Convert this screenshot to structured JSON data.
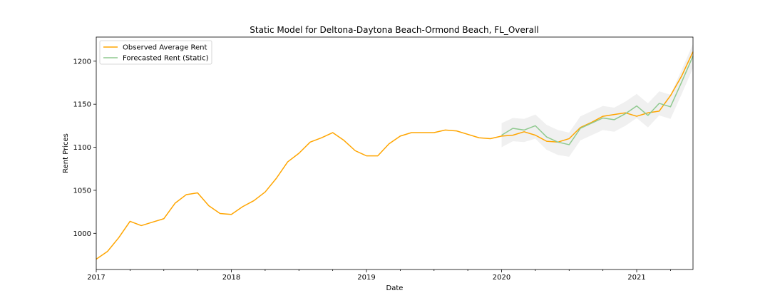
{
  "chart_data": {
    "type": "line",
    "title": "Static Model for Deltona-Daytona Beach-Ormond Beach, FL_Overall",
    "xlabel": "Date",
    "ylabel": "Rent Prices",
    "xlim": [
      "2017-01",
      "2021-06"
    ],
    "ylim": [
      958,
      1228
    ],
    "x_ticks": [
      "2017",
      "2018",
      "2019",
      "2020",
      "2021"
    ],
    "y_ticks": [
      1000,
      1050,
      1100,
      1150,
      1200
    ],
    "grid": false,
    "legend": "top-left",
    "colors": {
      "observed": "#ffa500",
      "forecast": "#8fc98f",
      "band": "#d3d3d3"
    },
    "series": [
      {
        "name": "Observed Average Rent",
        "x": [
          "2017-01",
          "2017-02",
          "2017-03",
          "2017-04",
          "2017-05",
          "2017-06",
          "2017-07",
          "2017-08",
          "2017-09",
          "2017-10",
          "2017-11",
          "2017-12",
          "2018-01",
          "2018-02",
          "2018-03",
          "2018-04",
          "2018-05",
          "2018-06",
          "2018-07",
          "2018-08",
          "2018-09",
          "2018-10",
          "2018-11",
          "2018-12",
          "2019-01",
          "2019-02",
          "2019-03",
          "2019-04",
          "2019-05",
          "2019-06",
          "2019-07",
          "2019-08",
          "2019-09",
          "2019-10",
          "2019-11",
          "2019-12",
          "2020-01",
          "2020-02",
          "2020-03",
          "2020-04",
          "2020-05",
          "2020-06",
          "2020-07",
          "2020-08",
          "2020-09",
          "2020-10",
          "2020-11",
          "2020-12",
          "2021-01",
          "2021-02",
          "2021-03",
          "2021-04",
          "2021-05",
          "2021-06"
        ],
        "values": [
          970,
          979,
          995,
          1014,
          1009,
          1013,
          1017,
          1035,
          1045,
          1047,
          1032,
          1023,
          1022,
          1031,
          1038,
          1048,
          1064,
          1083,
          1093,
          1106,
          1111,
          1117,
          1108,
          1096,
          1090,
          1090,
          1104,
          1113,
          1117,
          1117,
          1117,
          1120,
          1119,
          1115,
          1111,
          1110,
          1113,
          1114,
          1118,
          1114,
          1107,
          1106,
          1110,
          1123,
          1129,
          1136,
          1138,
          1140,
          1136,
          1140,
          1142,
          1160,
          1183,
          1211
        ]
      },
      {
        "name": "Forecasted Rent (Static)",
        "x": [
          "2020-01",
          "2020-02",
          "2020-03",
          "2020-04",
          "2020-05",
          "2020-06",
          "2020-07",
          "2020-08",
          "2020-09",
          "2020-10",
          "2020-11",
          "2020-12",
          "2021-01",
          "2021-02",
          "2021-03",
          "2021-04",
          "2021-05",
          "2021-06"
        ],
        "values": [
          1114,
          1122,
          1120,
          1125,
          1112,
          1106,
          1103,
          1122,
          1128,
          1134,
          1132,
          1139,
          1148,
          1137,
          1151,
          1147,
          1176,
          1206
        ],
        "lower": [
          1100,
          1107,
          1106,
          1110,
          1097,
          1091,
          1089,
          1108,
          1114,
          1120,
          1118,
          1125,
          1134,
          1123,
          1137,
          1133,
          1162,
          1192
        ],
        "upper": [
          1128,
          1134,
          1133,
          1138,
          1126,
          1120,
          1117,
          1136,
          1142,
          1148,
          1146,
          1153,
          1162,
          1151,
          1165,
          1161,
          1190,
          1220
        ]
      }
    ]
  }
}
